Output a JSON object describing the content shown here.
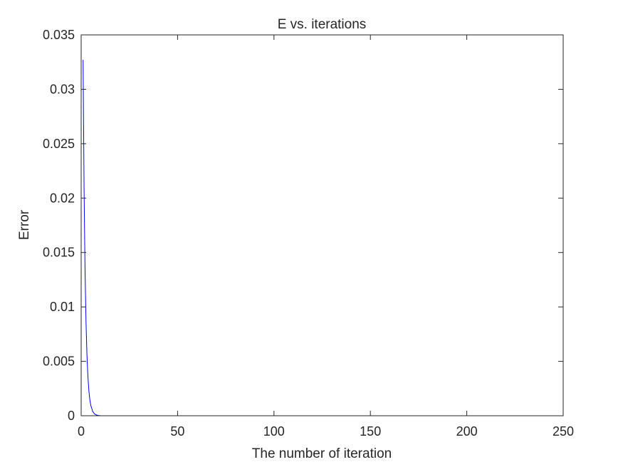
{
  "chart_data": {
    "type": "line",
    "title": "E vs. iterations",
    "xlabel": "The number of iteration",
    "ylabel": "Error",
    "xlim": [
      0,
      250
    ],
    "ylim": [
      0,
      0.035
    ],
    "xticks": [
      "0",
      "50",
      "100",
      "150",
      "200",
      "250"
    ],
    "yticks": [
      "0",
      "0.005",
      "0.01",
      "0.015",
      "0.02",
      "0.025",
      "0.03",
      "0.035"
    ],
    "grid": false,
    "series": [
      {
        "color": "#0000ff",
        "x": [
          1,
          1.5,
          2,
          2.5,
          3,
          3.5,
          4,
          4.5,
          5,
          6,
          7,
          8,
          9,
          10,
          12,
          15,
          20,
          30,
          50,
          100,
          150,
          200,
          250
        ],
        "y": [
          0.0327,
          0.021,
          0.0135,
          0.0087,
          0.0056,
          0.0036,
          0.0023,
          0.00148,
          0.00095,
          0.00039,
          0.00016,
          6.6e-05,
          2.7e-05,
          1.1e-05,
          2e-06,
          1e-07,
          0,
          0,
          0,
          0,
          0,
          0,
          0
        ]
      }
    ]
  }
}
